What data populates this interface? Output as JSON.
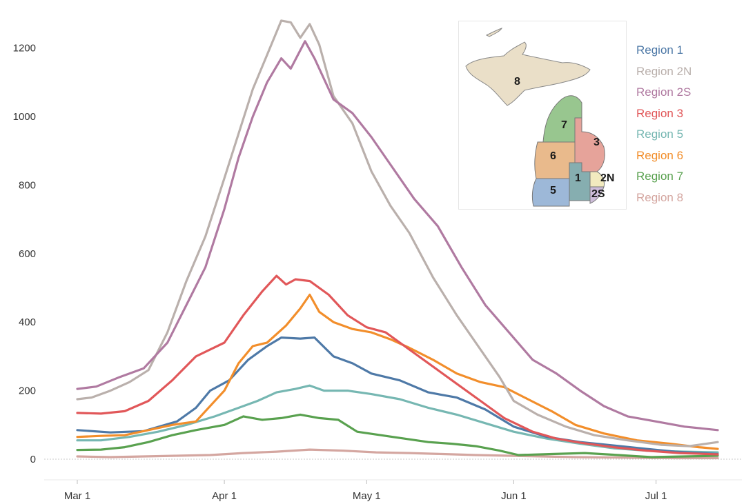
{
  "chart_data": {
    "type": "line",
    "title": "",
    "xlabel": "",
    "ylabel": "",
    "ylim": [
      0,
      1300
    ],
    "y_ticks": [
      0,
      200,
      400,
      600,
      800,
      1000,
      1200
    ],
    "y_tick_labels": [
      "0",
      "200",
      "400",
      "600",
      "800",
      "1000",
      "1200"
    ],
    "x_range": [
      "2020-03-01",
      "2020-07-14"
    ],
    "x_ticks": [
      "2020-03-01",
      "2020-04-01",
      "2020-05-01",
      "2020-06-01",
      "2020-07-01"
    ],
    "x_tick_labels": [
      "Mar 1",
      "Apr 1",
      "May 1",
      "Jun 1",
      "Jul 1"
    ],
    "zero_reference_line": "dotted",
    "legend_position": "top-right",
    "series": [
      {
        "name": "Region 1",
        "color": "#4e79a7",
        "points": [
          [
            "2020-03-01",
            85
          ],
          [
            "2020-03-08",
            78
          ],
          [
            "2020-03-15",
            82
          ],
          [
            "2020-03-22",
            110
          ],
          [
            "2020-03-26",
            150
          ],
          [
            "2020-03-29",
            200
          ],
          [
            "2020-04-02",
            230
          ],
          [
            "2020-04-06",
            290
          ],
          [
            "2020-04-10",
            330
          ],
          [
            "2020-04-13",
            355
          ],
          [
            "2020-04-17",
            352
          ],
          [
            "2020-04-20",
            355
          ],
          [
            "2020-04-24",
            300
          ],
          [
            "2020-04-28",
            280
          ],
          [
            "2020-05-02",
            250
          ],
          [
            "2020-05-08",
            230
          ],
          [
            "2020-05-14",
            195
          ],
          [
            "2020-05-20",
            180
          ],
          [
            "2020-05-26",
            145
          ],
          [
            "2020-06-01",
            95
          ],
          [
            "2020-06-08",
            65
          ],
          [
            "2020-06-15",
            50
          ],
          [
            "2020-06-22",
            40
          ],
          [
            "2020-06-29",
            30
          ],
          [
            "2020-07-05",
            22
          ],
          [
            "2020-07-14",
            15
          ]
        ]
      },
      {
        "name": "Region 2N",
        "color": "#bab0ac",
        "points": [
          [
            "2020-03-01",
            175
          ],
          [
            "2020-03-04",
            180
          ],
          [
            "2020-03-08",
            200
          ],
          [
            "2020-03-12",
            225
          ],
          [
            "2020-03-16",
            260
          ],
          [
            "2020-03-20",
            370
          ],
          [
            "2020-03-24",
            520
          ],
          [
            "2020-03-28",
            650
          ],
          [
            "2020-04-01",
            820
          ],
          [
            "2020-04-04",
            950
          ],
          [
            "2020-04-07",
            1080
          ],
          [
            "2020-04-10",
            1180
          ],
          [
            "2020-04-13",
            1280
          ],
          [
            "2020-04-15",
            1275
          ],
          [
            "2020-04-17",
            1230
          ],
          [
            "2020-04-19",
            1270
          ],
          [
            "2020-04-21",
            1210
          ],
          [
            "2020-04-24",
            1060
          ],
          [
            "2020-04-28",
            980
          ],
          [
            "2020-05-02",
            840
          ],
          [
            "2020-05-06",
            740
          ],
          [
            "2020-05-10",
            660
          ],
          [
            "2020-05-15",
            530
          ],
          [
            "2020-05-20",
            420
          ],
          [
            "2020-05-25",
            320
          ],
          [
            "2020-05-29",
            240
          ],
          [
            "2020-06-01",
            170
          ],
          [
            "2020-06-06",
            130
          ],
          [
            "2020-06-12",
            95
          ],
          [
            "2020-06-18",
            70
          ],
          [
            "2020-06-25",
            55
          ],
          [
            "2020-07-02",
            42
          ],
          [
            "2020-07-08",
            38
          ],
          [
            "2020-07-14",
            50
          ]
        ]
      },
      {
        "name": "Region 2S",
        "color": "#b07aa1",
        "points": [
          [
            "2020-03-01",
            205
          ],
          [
            "2020-03-05",
            212
          ],
          [
            "2020-03-10",
            240
          ],
          [
            "2020-03-15",
            265
          ],
          [
            "2020-03-20",
            340
          ],
          [
            "2020-03-24",
            450
          ],
          [
            "2020-03-28",
            560
          ],
          [
            "2020-04-01",
            730
          ],
          [
            "2020-04-04",
            880
          ],
          [
            "2020-04-07",
            1000
          ],
          [
            "2020-04-10",
            1100
          ],
          [
            "2020-04-13",
            1170
          ],
          [
            "2020-04-15",
            1140
          ],
          [
            "2020-04-18",
            1220
          ],
          [
            "2020-04-20",
            1170
          ],
          [
            "2020-04-24",
            1050
          ],
          [
            "2020-04-28",
            1010
          ],
          [
            "2020-05-02",
            940
          ],
          [
            "2020-05-06",
            860
          ],
          [
            "2020-05-11",
            760
          ],
          [
            "2020-05-16",
            680
          ],
          [
            "2020-05-21",
            560
          ],
          [
            "2020-05-26",
            450
          ],
          [
            "2020-05-31",
            370
          ],
          [
            "2020-06-05",
            290
          ],
          [
            "2020-06-10",
            250
          ],
          [
            "2020-06-15",
            200
          ],
          [
            "2020-06-20",
            155
          ],
          [
            "2020-06-25",
            125
          ],
          [
            "2020-07-01",
            110
          ],
          [
            "2020-07-07",
            95
          ],
          [
            "2020-07-14",
            85
          ]
        ]
      },
      {
        "name": "Region 3",
        "color": "#e15759",
        "points": [
          [
            "2020-03-01",
            135
          ],
          [
            "2020-03-06",
            133
          ],
          [
            "2020-03-11",
            140
          ],
          [
            "2020-03-16",
            170
          ],
          [
            "2020-03-21",
            230
          ],
          [
            "2020-03-26",
            300
          ],
          [
            "2020-04-01",
            340
          ],
          [
            "2020-04-05",
            420
          ],
          [
            "2020-04-09",
            490
          ],
          [
            "2020-04-12",
            535
          ],
          [
            "2020-04-14",
            510
          ],
          [
            "2020-04-16",
            525
          ],
          [
            "2020-04-19",
            520
          ],
          [
            "2020-04-23",
            480
          ],
          [
            "2020-04-27",
            420
          ],
          [
            "2020-05-01",
            385
          ],
          [
            "2020-05-05",
            370
          ],
          [
            "2020-05-10",
            320
          ],
          [
            "2020-05-15",
            270
          ],
          [
            "2020-05-20",
            220
          ],
          [
            "2020-05-25",
            170
          ],
          [
            "2020-05-30",
            120
          ],
          [
            "2020-06-05",
            80
          ],
          [
            "2020-06-10",
            60
          ],
          [
            "2020-06-15",
            48
          ],
          [
            "2020-06-22",
            35
          ],
          [
            "2020-06-29",
            25
          ],
          [
            "2020-07-06",
            18
          ],
          [
            "2020-07-14",
            14
          ]
        ]
      },
      {
        "name": "Region 5",
        "color": "#76b7b2",
        "points": [
          [
            "2020-03-01",
            55
          ],
          [
            "2020-03-06",
            55
          ],
          [
            "2020-03-12",
            65
          ],
          [
            "2020-03-18",
            80
          ],
          [
            "2020-03-24",
            100
          ],
          [
            "2020-03-30",
            125
          ],
          [
            "2020-04-04",
            150
          ],
          [
            "2020-04-08",
            170
          ],
          [
            "2020-04-12",
            195
          ],
          [
            "2020-04-16",
            205
          ],
          [
            "2020-04-19",
            215
          ],
          [
            "2020-04-22",
            200
          ],
          [
            "2020-04-27",
            200
          ],
          [
            "2020-05-02",
            190
          ],
          [
            "2020-05-08",
            175
          ],
          [
            "2020-05-14",
            150
          ],
          [
            "2020-05-20",
            130
          ],
          [
            "2020-05-26",
            105
          ],
          [
            "2020-06-01",
            80
          ],
          [
            "2020-06-08",
            60
          ],
          [
            "2020-06-15",
            45
          ],
          [
            "2020-06-22",
            32
          ],
          [
            "2020-06-29",
            25
          ],
          [
            "2020-07-07",
            22
          ],
          [
            "2020-07-14",
            20
          ]
        ]
      },
      {
        "name": "Region 6",
        "color": "#f28e2b",
        "points": [
          [
            "2020-03-01",
            65
          ],
          [
            "2020-03-06",
            68
          ],
          [
            "2020-03-11",
            70
          ],
          [
            "2020-03-16",
            85
          ],
          [
            "2020-03-21",
            100
          ],
          [
            "2020-03-26",
            110
          ],
          [
            "2020-04-01",
            200
          ],
          [
            "2020-04-04",
            280
          ],
          [
            "2020-04-07",
            330
          ],
          [
            "2020-04-10",
            340
          ],
          [
            "2020-04-14",
            390
          ],
          [
            "2020-04-17",
            440
          ],
          [
            "2020-04-19",
            480
          ],
          [
            "2020-04-21",
            430
          ],
          [
            "2020-04-24",
            400
          ],
          [
            "2020-04-28",
            380
          ],
          [
            "2020-05-02",
            370
          ],
          [
            "2020-05-06",
            350
          ],
          [
            "2020-05-10",
            325
          ],
          [
            "2020-05-15",
            290
          ],
          [
            "2020-05-20",
            250
          ],
          [
            "2020-05-25",
            225
          ],
          [
            "2020-05-30",
            210
          ],
          [
            "2020-06-04",
            175
          ],
          [
            "2020-06-09",
            140
          ],
          [
            "2020-06-14",
            100
          ],
          [
            "2020-06-20",
            75
          ],
          [
            "2020-06-27",
            55
          ],
          [
            "2020-07-04",
            45
          ],
          [
            "2020-07-10",
            35
          ],
          [
            "2020-07-14",
            30
          ]
        ]
      },
      {
        "name": "Region 7",
        "color": "#59a14f",
        "points": [
          [
            "2020-03-01",
            27
          ],
          [
            "2020-03-06",
            28
          ],
          [
            "2020-03-11",
            35
          ],
          [
            "2020-03-16",
            50
          ],
          [
            "2020-03-21",
            70
          ],
          [
            "2020-03-26",
            85
          ],
          [
            "2020-04-01",
            100
          ],
          [
            "2020-04-05",
            125
          ],
          [
            "2020-04-09",
            115
          ],
          [
            "2020-04-13",
            120
          ],
          [
            "2020-04-17",
            130
          ],
          [
            "2020-04-21",
            120
          ],
          [
            "2020-04-25",
            115
          ],
          [
            "2020-04-29",
            80
          ],
          [
            "2020-05-04",
            70
          ],
          [
            "2020-05-09",
            60
          ],
          [
            "2020-05-14",
            50
          ],
          [
            "2020-05-19",
            45
          ],
          [
            "2020-05-24",
            38
          ],
          [
            "2020-05-29",
            25
          ],
          [
            "2020-06-02",
            12
          ],
          [
            "2020-06-09",
            15
          ],
          [
            "2020-06-16",
            18
          ],
          [
            "2020-06-23",
            12
          ],
          [
            "2020-06-30",
            6
          ],
          [
            "2020-07-07",
            8
          ],
          [
            "2020-07-14",
            10
          ]
        ]
      },
      {
        "name": "Region 8",
        "color": "#d4a6a0",
        "points": [
          [
            "2020-03-01",
            8
          ],
          [
            "2020-03-08",
            6
          ],
          [
            "2020-03-15",
            8
          ],
          [
            "2020-03-22",
            10
          ],
          [
            "2020-03-29",
            12
          ],
          [
            "2020-04-05",
            18
          ],
          [
            "2020-04-12",
            22
          ],
          [
            "2020-04-19",
            28
          ],
          [
            "2020-04-26",
            25
          ],
          [
            "2020-05-03",
            20
          ],
          [
            "2020-05-10",
            18
          ],
          [
            "2020-05-17",
            15
          ],
          [
            "2020-05-24",
            12
          ],
          [
            "2020-05-31",
            10
          ],
          [
            "2020-06-07",
            8
          ],
          [
            "2020-06-14",
            6
          ],
          [
            "2020-06-21",
            5
          ],
          [
            "2020-06-28",
            4
          ],
          [
            "2020-07-05",
            3
          ],
          [
            "2020-07-14",
            3
          ]
        ]
      }
    ]
  },
  "inset_map": {
    "region_labels": [
      "8",
      "7",
      "6",
      "3",
      "1",
      "2N",
      "5",
      "2S"
    ],
    "region_colors": {
      "8": "#eadfc8",
      "7": "#98c68f",
      "6": "#e9ba8c",
      "3": "#e6a39a",
      "1": "#86aeb0",
      "2N": "#f2eabf",
      "5": "#9db8d8",
      "2S": "#cdbcd9"
    }
  }
}
